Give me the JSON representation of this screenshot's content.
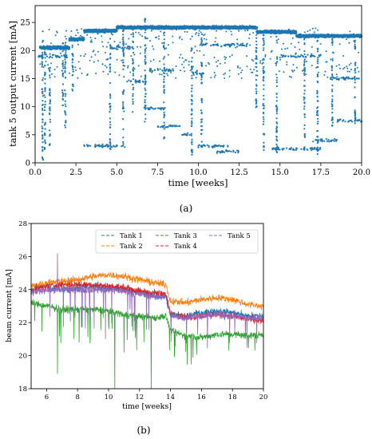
{
  "chart_data": [
    {
      "panel": "(a)",
      "type": "scatter",
      "xlabel": "time [weeks]",
      "ylabel": "tank 5 output current [mA]",
      "xlim": [
        0,
        20
      ],
      "ylim": [
        0,
        28
      ],
      "xticks": [
        "0.0",
        "2.5",
        "5.0",
        "7.5",
        "10.0",
        "12.5",
        "15.0",
        "17.5",
        "20.0"
      ],
      "yticks": [
        "0",
        "5",
        "10",
        "15",
        "20",
        "25"
      ],
      "color": "#1f77b4",
      "series": [
        {
          "values": "dense point cloud",
          "bands": [
            {
              "x": [
                0.3,
                2.1
              ],
              "y": 20.5
            },
            {
              "x": [
                2.1,
                3.0
              ],
              "y": 22
            },
            {
              "x": [
                3.0,
                5.0
              ],
              "y": 23.5
            },
            {
              "x": [
                5.0,
                13.6
              ],
              "y": 24.1
            },
            {
              "x": [
                13.6,
                16.0
              ],
              "y": 23.3
            },
            {
              "x": [
                16.0,
                20.0
              ],
              "y": 22.6
            }
          ],
          "secondary_levels": [
            {
              "x": [
                0.2,
                2.0
              ],
              "y": 19
            },
            {
              "x": [
                4.5,
                6.0
              ],
              "y": 20.5
            },
            {
              "x": [
                5.5,
                6.8
              ],
              "y": 14.5
            },
            {
              "x": [
                6.5,
                8.0
              ],
              "y": 9.7
            },
            {
              "x": [
                7.0,
                8.5
              ],
              "y": 16.5
            },
            {
              "x": [
                7.5,
                9.0
              ],
              "y": 6.5
            },
            {
              "x": [
                9.0,
                9.8
              ],
              "y": 5
            },
            {
              "x": [
                9.6,
                10.4
              ],
              "y": 16
            },
            {
              "x": [
                10.0,
                12.0
              ],
              "y": 3
            },
            {
              "x": [
                10.0,
                13.0
              ],
              "y": 21
            },
            {
              "x": [
                11.0,
                12.5
              ],
              "y": 2
            },
            {
              "x": [
                3.0,
                5.5
              ],
              "y": 3
            },
            {
              "x": [
                14.5,
                17.5
              ],
              "y": 2.5
            },
            {
              "x": [
                15.0,
                17.5
              ],
              "y": 19
            },
            {
              "x": [
                17.0,
                18.5
              ],
              "y": 4
            },
            {
              "x": [
                18.5,
                20.0
              ],
              "y": 7.5
            },
            {
              "x": [
                18.0,
                20.0
              ],
              "y": 15
            }
          ]
        }
      ]
    },
    {
      "panel": "(b)",
      "type": "line",
      "xlabel": "time [weeks]",
      "ylabel": "beam current [mA]",
      "xlim": [
        5,
        20
      ],
      "ylim": [
        18,
        28
      ],
      "xticks": [
        "6",
        "8",
        "10",
        "12",
        "14",
        "16",
        "18",
        "20"
      ],
      "yticks": [
        "18",
        "20",
        "22",
        "24",
        "26",
        "28"
      ],
      "legend_position": "top-center",
      "series": [
        {
          "name": "Tank 1",
          "color": "#1f77b4",
          "x": [
            5,
            6,
            7,
            8,
            9,
            10,
            11,
            12,
            13,
            13.7,
            14,
            15,
            16,
            17,
            18,
            19,
            20
          ],
          "y": [
            23.9,
            24.2,
            24.0,
            24.1,
            24.2,
            24.1,
            24.0,
            23.8,
            23.6,
            23.6,
            22.5,
            22.4,
            22.6,
            22.7,
            22.6,
            22.4,
            22.4
          ]
        },
        {
          "name": "Tank 2",
          "color": "#ff7f0e",
          "x": [
            5,
            6,
            7,
            8,
            9,
            10,
            11,
            12,
            13,
            13.7,
            14,
            15,
            16,
            17,
            18,
            19,
            20
          ],
          "y": [
            24.2,
            24.4,
            24.5,
            24.6,
            24.8,
            24.9,
            24.8,
            24.6,
            24.4,
            24.3,
            23.3,
            23.2,
            23.4,
            23.5,
            23.4,
            23.1,
            23.0
          ]
        },
        {
          "name": "Tank 3",
          "color": "#2ca02c",
          "x": [
            5,
            6,
            7,
            8,
            9,
            10,
            11,
            12,
            13,
            13.7,
            14,
            15,
            16,
            17,
            18,
            19,
            20
          ],
          "y": [
            23.2,
            23.0,
            22.8,
            22.8,
            22.8,
            22.7,
            22.5,
            22.4,
            22.3,
            22.4,
            21.5,
            21.2,
            21.1,
            21.3,
            21.3,
            21.2,
            21.3
          ]
        },
        {
          "name": "Tank 4",
          "color": "#d62728",
          "x": [
            5,
            6,
            7,
            8,
            9,
            10,
            11,
            12,
            13,
            13.7,
            14,
            15,
            16,
            17,
            18,
            19,
            20
          ],
          "y": [
            24.0,
            24.2,
            24.3,
            24.3,
            24.3,
            24.2,
            24.1,
            23.9,
            23.8,
            23.7,
            22.6,
            22.3,
            22.4,
            22.5,
            22.4,
            22.2,
            22.1
          ]
        },
        {
          "name": "Tank 5",
          "color": "#9467bd",
          "x": [
            5,
            6,
            7,
            8,
            9,
            10,
            11,
            12,
            13,
            13.7,
            14,
            15,
            16,
            17,
            18,
            19,
            20
          ],
          "y": [
            23.8,
            24.0,
            24.0,
            24.0,
            24.0,
            24.0,
            23.9,
            23.7,
            23.6,
            23.5,
            22.4,
            22.3,
            22.4,
            22.5,
            22.4,
            22.3,
            22.3
          ]
        }
      ],
      "dips": [
        {
          "series": "Tank 3",
          "x": 6.7,
          "y": 18.9
        },
        {
          "series": "Tank 3",
          "x": 10.4,
          "y": 18.0
        },
        {
          "series": "Tank 3",
          "x": 12.75,
          "y": 18.0
        },
        {
          "series": "Tank 3",
          "x": 11.0,
          "y": 20.2
        },
        {
          "series": "Tank 3",
          "x": 8.1,
          "y": 20.8
        },
        {
          "series": "Tank 5",
          "x": 6.7,
          "y": 26.2
        },
        {
          "series": "Tank 5",
          "x": 9.8,
          "y": 21.0
        },
        {
          "series": "Tank 5",
          "x": 11.7,
          "y": 21.5
        }
      ]
    }
  ]
}
